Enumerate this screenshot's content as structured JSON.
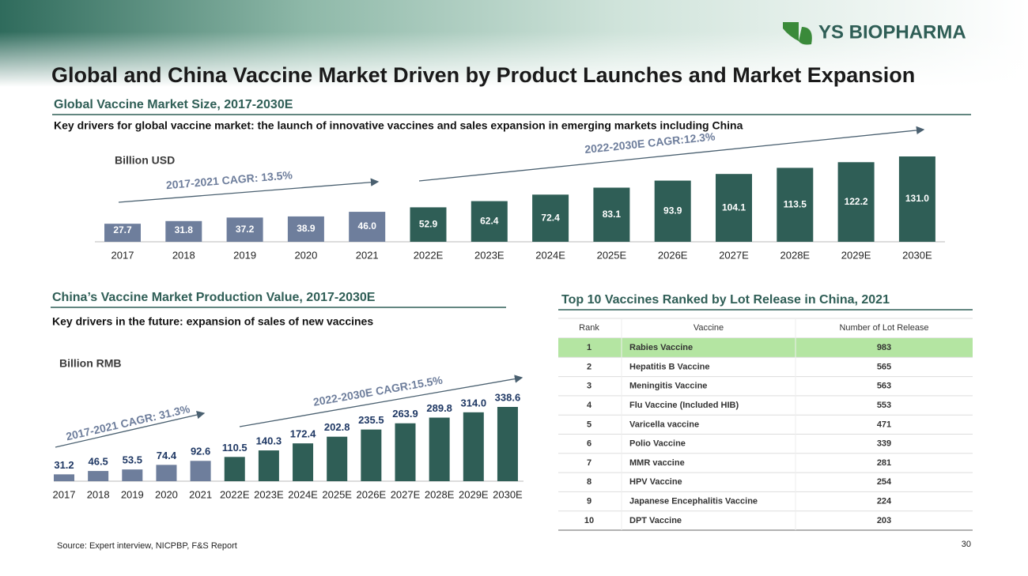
{
  "header": {
    "logo": "YS BIOPHARMA",
    "title": "Global and China Vaccine Market Driven by Product Launches and Market Expansion"
  },
  "chart_data": [
    {
      "type": "bar",
      "title": "Global Vaccine Market Size, 2017-2030E",
      "subtitle": "Key drivers for global vaccine market: the launch of innovative vaccines and sales expansion in emerging markets including China",
      "y_label": "Billion USD",
      "annotations": [
        "2017-2021 CAGR: 13.5%",
        "2022-2030E CAGR:12.3%"
      ],
      "categories": [
        "2017",
        "2018",
        "2019",
        "2020",
        "2021",
        "2022E",
        "2023E",
        "2024E",
        "2025E",
        "2026E",
        "2027E",
        "2028E",
        "2029E",
        "2030E"
      ],
      "values": [
        27.7,
        31.8,
        37.2,
        38.9,
        46.0,
        52.9,
        62.4,
        72.4,
        83.1,
        93.9,
        104.1,
        113.5,
        122.2,
        131.0
      ],
      "value_labels": [
        "27.7",
        "31.8",
        "37.2",
        "38.9",
        "46.0",
        "52.9",
        "62.4",
        "72.4",
        "83.1",
        "93.9",
        "104.1",
        "113.5",
        "122.2",
        "131.0"
      ],
      "colors": [
        "#6e7e9c",
        "#6e7e9c",
        "#6e7e9c",
        "#6e7e9c",
        "#6e7e9c",
        "#2f5e56",
        "#2f5e56",
        "#2f5e56",
        "#2f5e56",
        "#2f5e56",
        "#2f5e56",
        "#2f5e56",
        "#2f5e56",
        "#2f5e56"
      ]
    },
    {
      "type": "bar",
      "title": "China’s Vaccine Market Production Value, 2017-2030E",
      "subtitle": "Key drivers in the future: expansion of sales of new vaccines",
      "y_label": "Billion RMB",
      "annotations": [
        "2017-2021 CAGR: 31.3%",
        "2022-2030E CAGR:15.5%"
      ],
      "categories": [
        "2017",
        "2018",
        "2019",
        "2020",
        "2021",
        "2022E",
        "2023E",
        "2024E",
        "2025E",
        "2026E",
        "2027E",
        "2028E",
        "2029E",
        "2030E"
      ],
      "values": [
        31.2,
        46.5,
        53.5,
        74.4,
        92.6,
        110.5,
        140.3,
        172.4,
        202.8,
        235.5,
        263.9,
        289.8,
        314.0,
        338.6
      ],
      "value_labels": [
        "31.2",
        "46.5",
        "53.5",
        "74.4",
        "92.6",
        "110.5",
        "140.3",
        "172.4",
        "202.8",
        "235.5",
        "263.9",
        "289.8",
        "314.0",
        "338.6"
      ],
      "colors": [
        "#6e7e9c",
        "#6e7e9c",
        "#6e7e9c",
        "#6e7e9c",
        "#6e7e9c",
        "#2f5e56",
        "#2f5e56",
        "#2f5e56",
        "#2f5e56",
        "#2f5e56",
        "#2f5e56",
        "#2f5e56",
        "#2f5e56",
        "#2f5e56"
      ]
    }
  ],
  "table": {
    "title": "Top 10 Vaccines Ranked by Lot Release in China, 2021",
    "columns": [
      "Rank",
      "Vaccine",
      "Number of Lot Release"
    ],
    "rows": [
      [
        1,
        "Rabies Vaccine",
        983
      ],
      [
        2,
        "Hepatitis B Vaccine",
        565
      ],
      [
        3,
        "Meningitis Vaccine",
        563
      ],
      [
        4,
        "Flu Vaccine (Included HIB)",
        553
      ],
      [
        5,
        "Varicella vaccine",
        471
      ],
      [
        6,
        "Polio Vaccine",
        339
      ],
      [
        7,
        "MMR vaccine",
        281
      ],
      [
        8,
        "HPV Vaccine",
        254
      ],
      [
        9,
        "Japanese Encephalitis Vaccine",
        224
      ],
      [
        10,
        "DPT Vaccine",
        203
      ]
    ]
  },
  "footer": {
    "source": "Source: Expert interview, NICPBP, F&S Report",
    "page": "30"
  }
}
